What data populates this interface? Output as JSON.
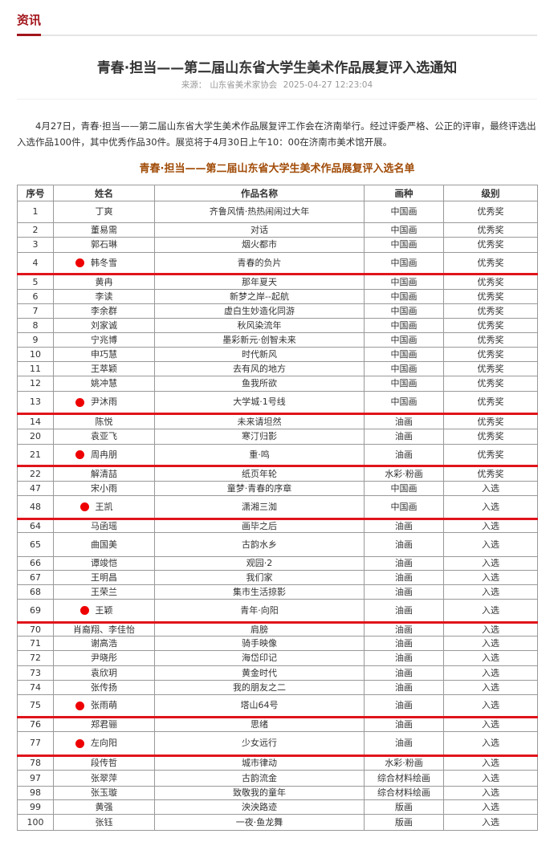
{
  "section": {
    "label": "资讯"
  },
  "article": {
    "title": "青春·担当——第二届山东省大学生美术作品展复评入选通知",
    "source_label": "来源：",
    "source": "山东省美术家协会",
    "datetime": "2025-04-27 12:23:04",
    "paragraph": "4月27日，青春·担当——第二届山东省大学生美术作品展复评工作会在济南举行。经过评委严格、公正的评审，最终评选出入选作品100件，其中优秀作品30件。展览将于4月30日上午10：00在济南市美术馆开展。",
    "list_title": "青春·担当——第二届山东省大学生美术作品展复评入选名单"
  },
  "colors": {
    "accent": "#a3161c",
    "list_title": "#a04b06",
    "marker": "#ee0000"
  },
  "table": {
    "headers": [
      "序号",
      "姓名",
      "作品名称",
      "画种",
      "级别"
    ],
    "rows": [
      {
        "no": "1",
        "name": "丁爽",
        "work": "齐鲁风情·热热闹闹过大年",
        "type": "中国画",
        "level": "优秀奖",
        "marked": false
      },
      {
        "no": "2",
        "name": "董易需",
        "work": "对话",
        "type": "中国画",
        "level": "优秀奖",
        "marked": false
      },
      {
        "no": "3",
        "name": "郭石琳",
        "work": "烟火都市",
        "type": "中国画",
        "level": "优秀奖",
        "marked": false
      },
      {
        "no": "4",
        "name": "韩冬雪",
        "work": "青春的负片",
        "type": "中国画",
        "level": "优秀奖",
        "marked": true
      },
      {
        "no": "5",
        "name": "黄冉",
        "work": "那年夏天",
        "type": "中国画",
        "level": "优秀奖",
        "marked": false
      },
      {
        "no": "6",
        "name": "李读",
        "work": "新梦之岸--起航",
        "type": "中国画",
        "level": "优秀奖",
        "marked": false
      },
      {
        "no": "7",
        "name": "李余群",
        "work": "虚白生妙造化同游",
        "type": "中国画",
        "level": "优秀奖",
        "marked": false
      },
      {
        "no": "8",
        "name": "刘家诚",
        "work": "秋风染流年",
        "type": "中国画",
        "level": "优秀奖",
        "marked": false
      },
      {
        "no": "9",
        "name": "宁兆博",
        "work": "墨彩新元·创智未来",
        "type": "中国画",
        "level": "优秀奖",
        "marked": false
      },
      {
        "no": "10",
        "name": "申巧慧",
        "work": "时代新风",
        "type": "中国画",
        "level": "优秀奖",
        "marked": false
      },
      {
        "no": "11",
        "name": "王萃颖",
        "work": "去有风的地方",
        "type": "中国画",
        "level": "优秀奖",
        "marked": false
      },
      {
        "no": "12",
        "name": "姚冲慧",
        "work": "鱼我所欲",
        "type": "中国画",
        "level": "优秀奖",
        "marked": false
      },
      {
        "no": "13",
        "name": "尹沐雨",
        "work": "大学城·1号线",
        "type": "中国画",
        "level": "优秀奖",
        "marked": true
      },
      {
        "no": "14",
        "name": "陈悦",
        "work": "未来请坦然",
        "type": "油画",
        "level": "优秀奖",
        "marked": false
      },
      {
        "no": "20",
        "name": "袁亚飞",
        "work": "寒汀归影",
        "type": "油画",
        "level": "优秀奖",
        "marked": false
      },
      {
        "no": "21",
        "name": "周冉朋",
        "work": "重·鸣",
        "type": "油画",
        "level": "优秀奖",
        "marked": true
      },
      {
        "no": "22",
        "name": "解清喆",
        "work": "纸页年轮",
        "type": "水彩·粉画",
        "level": "优秀奖",
        "marked": false
      },
      {
        "no": "47",
        "name": "宋小雨",
        "work": "童梦·青春的序章",
        "type": "中国画",
        "level": "入选",
        "marked": false
      },
      {
        "no": "48",
        "name": "王凯",
        "work": "潇湘三洳",
        "type": "中国画",
        "level": "入选",
        "marked": true
      },
      {
        "no": "64",
        "name": "马函瑶",
        "work": "画毕之后",
        "type": "油画",
        "level": "入选",
        "marked": false
      },
      {
        "no": "65",
        "name": "曲国美",
        "work": "古韵水乡",
        "type": "油画",
        "level": "入选",
        "marked": false
      },
      {
        "no": "66",
        "name": "谭竣恺",
        "work": "观园·2",
        "type": "油画",
        "level": "入选",
        "marked": false
      },
      {
        "no": "67",
        "name": "王明昌",
        "work": "我们家",
        "type": "油画",
        "level": "入选",
        "marked": false
      },
      {
        "no": "68",
        "name": "王荣兰",
        "work": "集市生活掠影",
        "type": "油画",
        "level": "入选",
        "marked": false
      },
      {
        "no": "69",
        "name": "王颖",
        "work": "青年·向阳",
        "type": "油画",
        "level": "入选",
        "marked": true
      },
      {
        "no": "70",
        "name": "肖裔翔、李佳怡",
        "work": "肩膀",
        "type": "油画",
        "level": "入选",
        "marked": false
      },
      {
        "no": "71",
        "name": "谢高浩",
        "work": "骑手映像",
        "type": "油画",
        "level": "入选",
        "marked": false
      },
      {
        "no": "72",
        "name": "尹晓彤",
        "work": "海岱印记",
        "type": "油画",
        "level": "入选",
        "marked": false
      },
      {
        "no": "73",
        "name": "袁欣玥",
        "work": "黄金时代",
        "type": "油画",
        "level": "入选",
        "marked": false
      },
      {
        "no": "74",
        "name": "张传扬",
        "work": "我的朋友之二",
        "type": "油画",
        "level": "入选",
        "marked": false
      },
      {
        "no": "75",
        "name": "张雨萌",
        "work": "塔山64号",
        "type": "油画",
        "level": "入选",
        "marked": true
      },
      {
        "no": "76",
        "name": "郑君骊",
        "work": "思绪",
        "type": "油画",
        "level": "入选",
        "marked": false
      },
      {
        "no": "77",
        "name": "左向阳",
        "work": "少女远行",
        "type": "油画",
        "level": "入选",
        "marked": true
      },
      {
        "no": "78",
        "name": "段传哲",
        "work": "城市律动",
        "type": "水彩·粉画",
        "level": "入选",
        "marked": false
      },
      {
        "no": "97",
        "name": "张翠萍",
        "work": "古韵流金",
        "type": "综合材料绘画",
        "level": "入选",
        "marked": false
      },
      {
        "no": "98",
        "name": "张玉璇",
        "work": "致敬我的童年",
        "type": "综合材料绘画",
        "level": "入选",
        "marked": false
      },
      {
        "no": "99",
        "name": "黄强",
        "work": "泱泱路迹",
        "type": "版画",
        "level": "入选",
        "marked": false
      },
      {
        "no": "100",
        "name": "张钰",
        "work": "一夜·鱼龙舞",
        "type": "版画",
        "level": "入选",
        "marked": false
      }
    ]
  }
}
